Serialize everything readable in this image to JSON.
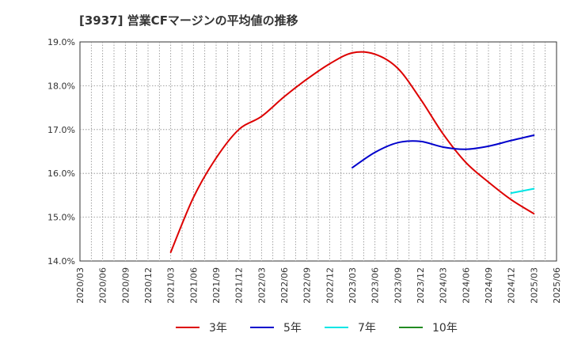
{
  "chart_data": {
    "type": "line",
    "title": "[3937]  営業CFマージンの平均値の推移",
    "xlabel": "",
    "ylabel": "",
    "x": [
      "2020/03",
      "2020/06",
      "2020/09",
      "2020/12",
      "2021/03",
      "2021/06",
      "2021/09",
      "2021/12",
      "2022/03",
      "2022/06",
      "2022/09",
      "2022/12",
      "2023/03",
      "2023/06",
      "2023/09",
      "2023/12",
      "2024/03",
      "2024/06",
      "2024/09",
      "2024/12",
      "2025/03",
      "2025/06"
    ],
    "ylim": [
      14.0,
      19.0
    ],
    "yticks": [
      14.0,
      15.0,
      16.0,
      17.0,
      18.0,
      19.0
    ],
    "ytick_labels": [
      "14.0%",
      "15.0%",
      "16.0%",
      "17.0%",
      "18.0%",
      "19.0%"
    ],
    "grid": true,
    "legend_position": "bottom",
    "series": [
      {
        "name": "3年",
        "color": "#dd0000",
        "values": [
          null,
          null,
          null,
          null,
          14.2,
          15.45,
          16.35,
          17.0,
          17.3,
          17.75,
          18.15,
          18.5,
          18.75,
          18.72,
          18.4,
          17.7,
          16.9,
          16.25,
          15.8,
          15.4,
          15.08,
          null
        ]
      },
      {
        "name": "5年",
        "color": "#0000cc",
        "values": [
          null,
          null,
          null,
          null,
          null,
          null,
          null,
          null,
          null,
          null,
          null,
          null,
          16.13,
          16.48,
          16.7,
          16.73,
          16.6,
          16.55,
          16.62,
          16.75,
          16.87,
          null
        ]
      },
      {
        "name": "7年",
        "color": "#00e5e5",
        "values": [
          null,
          null,
          null,
          null,
          null,
          null,
          null,
          null,
          null,
          null,
          null,
          null,
          null,
          null,
          null,
          null,
          null,
          null,
          null,
          15.55,
          15.65,
          null
        ]
      },
      {
        "name": "10年",
        "color": "#228b22",
        "values": [
          null,
          null,
          null,
          null,
          null,
          null,
          null,
          null,
          null,
          null,
          null,
          null,
          null,
          null,
          null,
          null,
          null,
          null,
          null,
          null,
          null,
          null
        ]
      }
    ]
  }
}
